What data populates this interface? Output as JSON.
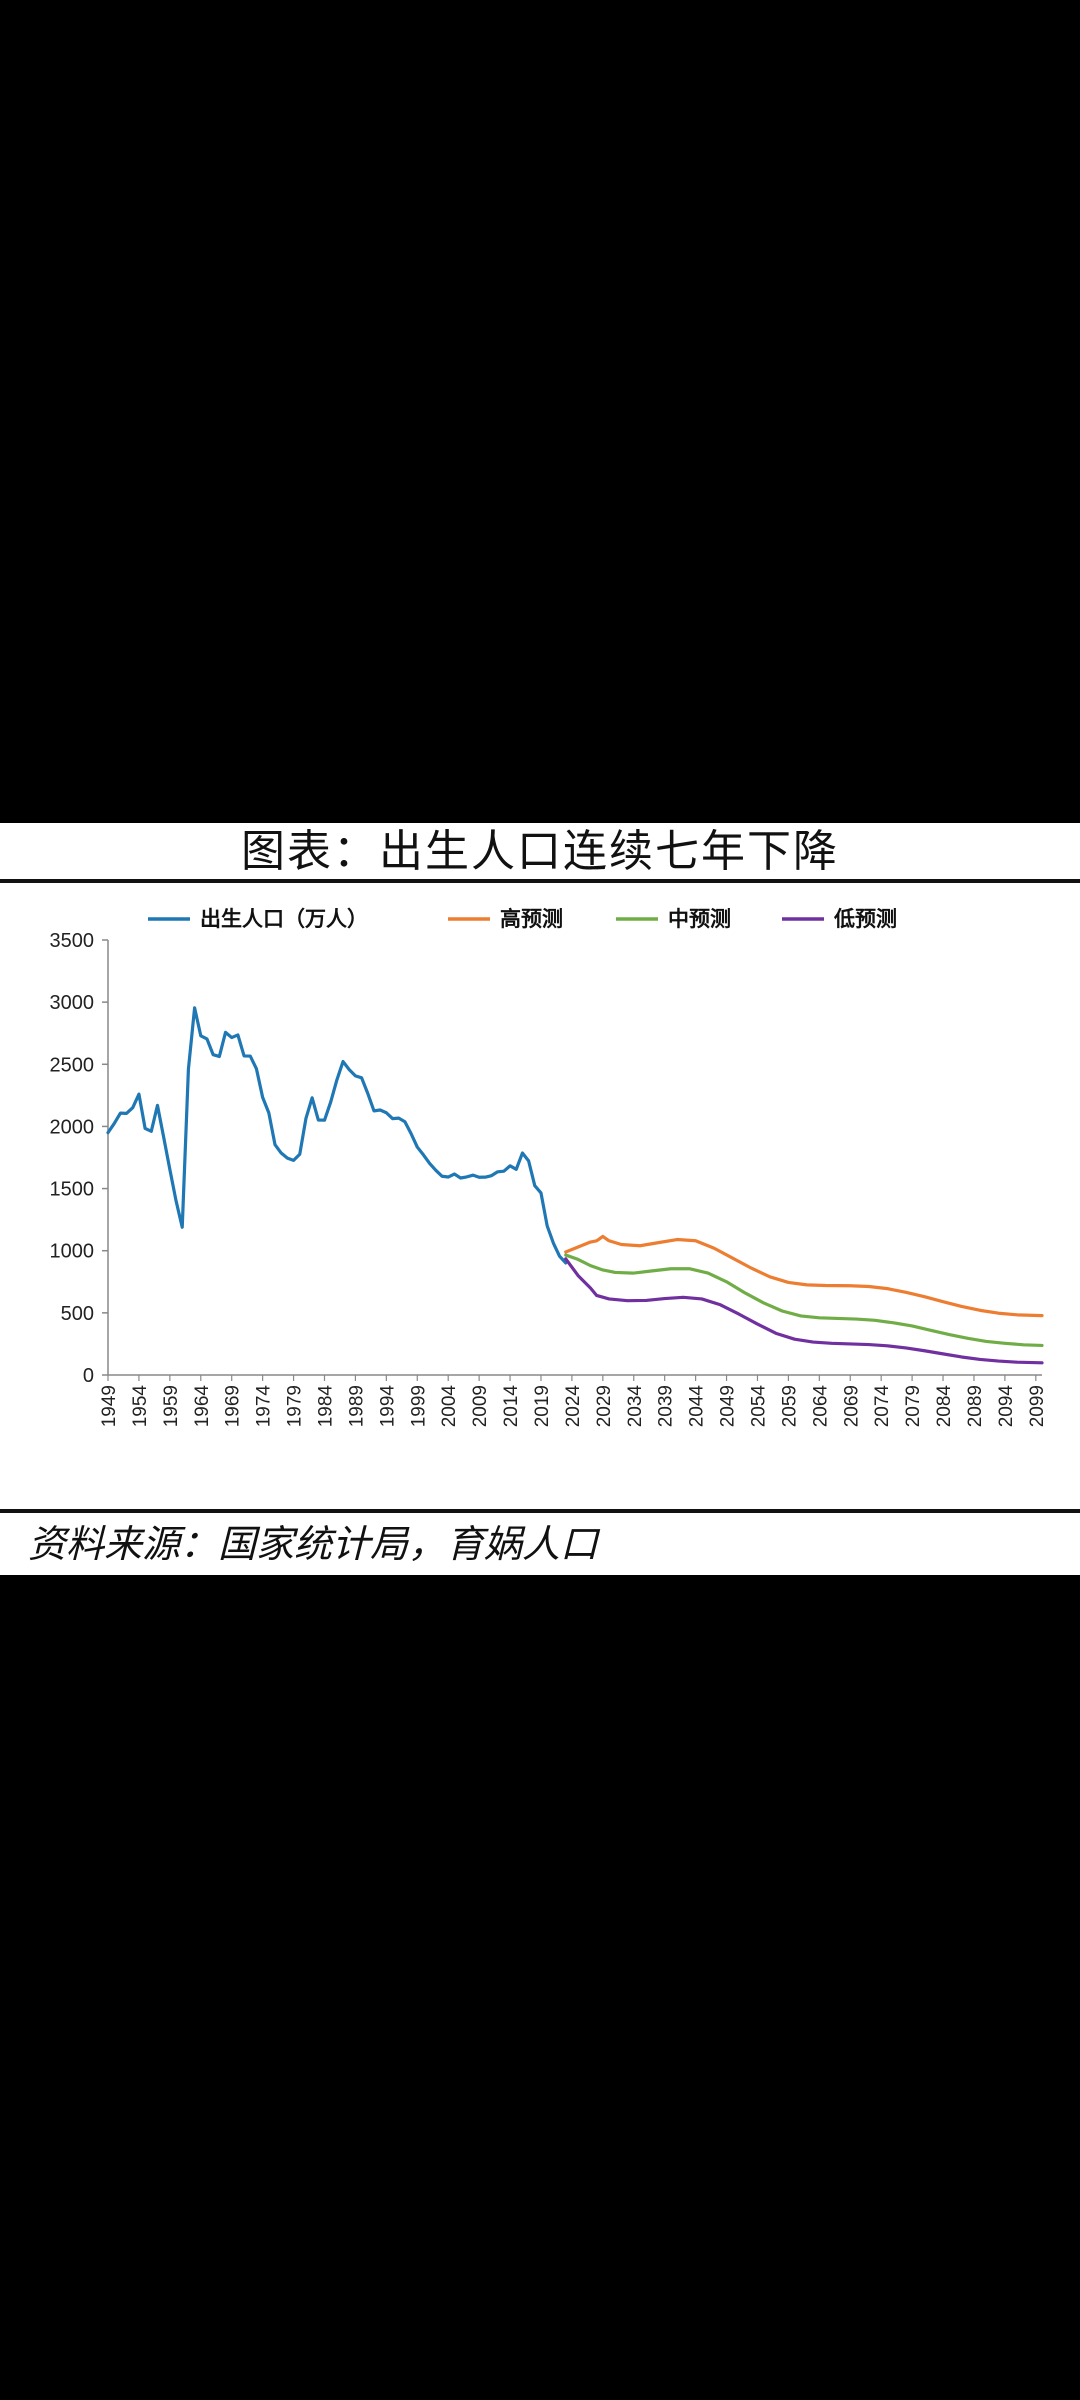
{
  "header": {
    "title": "图表：出生人口连续七年下降"
  },
  "footer": {
    "source": "资料来源：国家统计局，育娲人口"
  },
  "colors": {
    "background": "#000000",
    "panel": "#ffffff"
  },
  "chart_data": {
    "type": "line",
    "title": "图表：出生人口连续七年下降",
    "xlabel": "",
    "ylabel": "",
    "xlim": [
      1949,
      2100
    ],
    "ylim": [
      0,
      3500
    ],
    "yticks": [
      0,
      500,
      1000,
      1500,
      2000,
      2500,
      3000,
      3500
    ],
    "xtick_labels": [
      "1949",
      "1954",
      "1959",
      "1964",
      "1969",
      "1974",
      "1979",
      "1984",
      "1989",
      "1994",
      "1999",
      "2004",
      "2009",
      "2014",
      "2019",
      "2024",
      "2029",
      "2034",
      "2039",
      "2044",
      "2049",
      "2054",
      "2059",
      "2064",
      "2069",
      "2074",
      "2079",
      "2084",
      "2089",
      "2094",
      "2099"
    ],
    "grid": false,
    "legend_position": "top",
    "series": [
      {
        "name": "出生人口（万人）",
        "color": "#1f77b4",
        "points": [
          [
            1949,
            1950
          ],
          [
            1950,
            2023
          ],
          [
            1951,
            2107
          ],
          [
            1952,
            2105
          ],
          [
            1953,
            2151
          ],
          [
            1954,
            2260
          ],
          [
            1955,
            1984
          ],
          [
            1956,
            1961
          ],
          [
            1957,
            2169
          ],
          [
            1958,
            1913
          ],
          [
            1959,
            1654
          ],
          [
            1960,
            1402
          ],
          [
            1961,
            1189
          ],
          [
            1962,
            2460
          ],
          [
            1963,
            2954
          ],
          [
            1964,
            2729
          ],
          [
            1965,
            2704
          ],
          [
            1966,
            2577
          ],
          [
            1967,
            2563
          ],
          [
            1968,
            2757
          ],
          [
            1969,
            2715
          ],
          [
            1970,
            2736
          ],
          [
            1971,
            2567
          ],
          [
            1972,
            2566
          ],
          [
            1973,
            2463
          ],
          [
            1974,
            2234
          ],
          [
            1975,
            2109
          ],
          [
            1976,
            1853
          ],
          [
            1977,
            1786
          ],
          [
            1978,
            1745
          ],
          [
            1979,
            1727
          ],
          [
            1980,
            1776
          ],
          [
            1981,
            2064
          ],
          [
            1982,
            2230
          ],
          [
            1983,
            2052
          ],
          [
            1984,
            2050
          ],
          [
            1985,
            2196
          ],
          [
            1986,
            2374
          ],
          [
            1987,
            2522
          ],
          [
            1988,
            2457
          ],
          [
            1989,
            2407
          ],
          [
            1990,
            2391
          ],
          [
            1991,
            2265
          ],
          [
            1992,
            2125
          ],
          [
            1993,
            2132
          ],
          [
            1994,
            2110
          ],
          [
            1995,
            2063
          ],
          [
            1996,
            2067
          ],
          [
            1997,
            2038
          ],
          [
            1998,
            1942
          ],
          [
            1999,
            1834
          ],
          [
            2000,
            1771
          ],
          [
            2001,
            1702
          ],
          [
            2002,
            1647
          ],
          [
            2003,
            1599
          ],
          [
            2004,
            1593
          ],
          [
            2005,
            1617
          ],
          [
            2006,
            1585
          ],
          [
            2007,
            1594
          ],
          [
            2008,
            1608
          ],
          [
            2009,
            1591
          ],
          [
            2010,
            1592
          ],
          [
            2011,
            1604
          ],
          [
            2012,
            1635
          ],
          [
            2013,
            1640
          ],
          [
            2014,
            1683
          ],
          [
            2015,
            1655
          ],
          [
            2016,
            1786
          ],
          [
            2017,
            1723
          ],
          [
            2018,
            1523
          ],
          [
            2019,
            1465
          ],
          [
            2020,
            1200
          ],
          [
            2021,
            1062
          ],
          [
            2022,
            956
          ],
          [
            2023,
            902
          ]
        ]
      },
      {
        "name": "高预测",
        "color": "#ed7d31",
        "points": [
          [
            2023,
            990
          ],
          [
            2025,
            1030
          ],
          [
            2027,
            1070
          ],
          [
            2028,
            1080
          ],
          [
            2029,
            1115
          ],
          [
            2030,
            1080
          ],
          [
            2032,
            1050
          ],
          [
            2035,
            1040
          ],
          [
            2038,
            1065
          ],
          [
            2041,
            1090
          ],
          [
            2044,
            1080
          ],
          [
            2047,
            1020
          ],
          [
            2050,
            940
          ],
          [
            2053,
            860
          ],
          [
            2056,
            790
          ],
          [
            2059,
            745
          ],
          [
            2062,
            725
          ],
          [
            2065,
            720
          ],
          [
            2069,
            718
          ],
          [
            2072,
            712
          ],
          [
            2075,
            695
          ],
          [
            2078,
            665
          ],
          [
            2081,
            630
          ],
          [
            2084,
            590
          ],
          [
            2087,
            552
          ],
          [
            2090,
            520
          ],
          [
            2093,
            497
          ],
          [
            2096,
            484
          ],
          [
            2100,
            478
          ]
        ]
      },
      {
        "name": "中预测",
        "color": "#70ad47",
        "points": [
          [
            2023,
            965
          ],
          [
            2025,
            930
          ],
          [
            2027,
            880
          ],
          [
            2029,
            845
          ],
          [
            2031,
            825
          ],
          [
            2034,
            820
          ],
          [
            2037,
            838
          ],
          [
            2040,
            855
          ],
          [
            2043,
            855
          ],
          [
            2046,
            820
          ],
          [
            2049,
            750
          ],
          [
            2052,
            660
          ],
          [
            2055,
            580
          ],
          [
            2058,
            515
          ],
          [
            2061,
            475
          ],
          [
            2064,
            460
          ],
          [
            2067,
            455
          ],
          [
            2070,
            450
          ],
          [
            2073,
            440
          ],
          [
            2076,
            420
          ],
          [
            2079,
            395
          ],
          [
            2082,
            360
          ],
          [
            2085,
            325
          ],
          [
            2088,
            295
          ],
          [
            2091,
            270
          ],
          [
            2094,
            255
          ],
          [
            2097,
            243
          ],
          [
            2100,
            238
          ]
        ]
      },
      {
        "name": "低预测",
        "color": "#7030a0",
        "points": [
          [
            2023,
            935
          ],
          [
            2025,
            800
          ],
          [
            2027,
            700
          ],
          [
            2028,
            640
          ],
          [
            2030,
            612
          ],
          [
            2033,
            598
          ],
          [
            2036,
            600
          ],
          [
            2039,
            615
          ],
          [
            2042,
            625
          ],
          [
            2045,
            612
          ],
          [
            2048,
            565
          ],
          [
            2051,
            490
          ],
          [
            2054,
            410
          ],
          [
            2057,
            335
          ],
          [
            2060,
            288
          ],
          [
            2063,
            265
          ],
          [
            2066,
            255
          ],
          [
            2069,
            250
          ],
          [
            2072,
            245
          ],
          [
            2075,
            235
          ],
          [
            2078,
            218
          ],
          [
            2081,
            195
          ],
          [
            2084,
            170
          ],
          [
            2087,
            145
          ],
          [
            2090,
            125
          ],
          [
            2093,
            112
          ],
          [
            2096,
            103
          ],
          [
            2100,
            98
          ]
        ]
      }
    ]
  }
}
